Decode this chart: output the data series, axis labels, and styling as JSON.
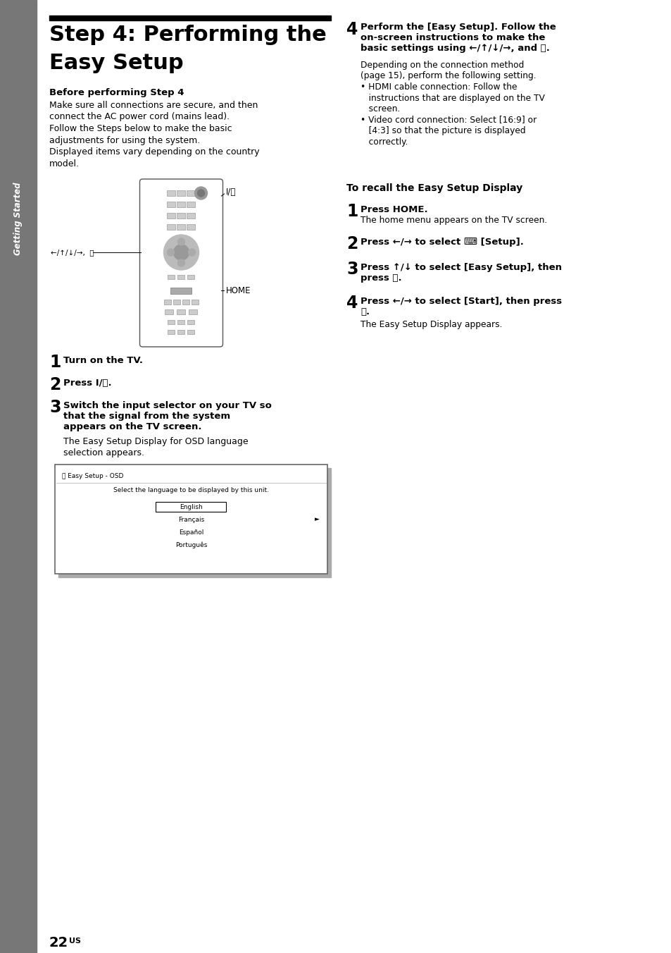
{
  "bg_color": "#ffffff",
  "sidebar_color": "#777777",
  "title_bar_color": "#000000",
  "sidebar_text": "Getting Started",
  "page_num": "22",
  "page_suffix": "US"
}
